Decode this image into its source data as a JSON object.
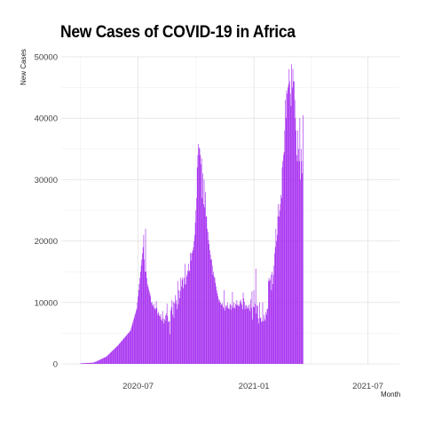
{
  "chart_data": {
    "type": "bar",
    "title": "New Cases of COVID-19 in Africa",
    "xlabel": "Month",
    "ylabel": "New Cases",
    "x_range": [
      "2020-03-01",
      "2021-08-20"
    ],
    "ylim": [
      0,
      50000
    ],
    "yticks": [
      0,
      10000,
      20000,
      30000,
      40000,
      50000
    ],
    "ytick_labels": [
      "0",
      "10000",
      "20000",
      "30000",
      "40000",
      "50000"
    ],
    "xticks": [
      "2020-07-01",
      "2021-01-01",
      "2021-07-01"
    ],
    "xtick_labels": [
      "2020-07",
      "2021-01",
      "2021-07"
    ],
    "grid": true,
    "bar_color": "#a020f0",
    "series": [
      {
        "x_start": "2020-04-01",
        "x_step_days": 1,
        "values": [
          100,
          105,
          110,
          115,
          120,
          125,
          130,
          135,
          140,
          145,
          150,
          155,
          160,
          165,
          170,
          175,
          180,
          185,
          190,
          195,
          210,
          240,
          280,
          320,
          360,
          400,
          450,
          500,
          550,
          600,
          650,
          700,
          750,
          800,
          850,
          900,
          950,
          1000,
          1050,
          1100,
          1100,
          1200,
          1300,
          1400,
          1500,
          1600,
          1700,
          1800,
          1900,
          2000,
          2100,
          2200,
          2300,
          2400,
          2500,
          2600,
          2700,
          2800,
          2900,
          3000,
          3120,
          3240,
          3360,
          3480,
          3600,
          3720,
          3840,
          3960,
          4080,
          4200,
          4320,
          4440,
          4560,
          4680,
          4800,
          4920,
          5040,
          5160,
          5280,
          5400,
          5760,
          6120,
          6480,
          6840,
          7200,
          7560,
          7920,
          8280,
          8640,
          9000,
          10000,
          11000,
          12000,
          13000,
          14000,
          15000,
          16000,
          17000,
          18000,
          19000,
          21000,
          17000,
          15000,
          22000,
          15000,
          14000,
          13000,
          12600,
          12200,
          11800,
          11400,
          11000,
          10000,
          10100,
          9600,
          9400,
          9800,
          9100,
          8900,
          9000,
          10200,
          9100,
          8000,
          8500,
          8200,
          7800,
          7700,
          8100,
          7200,
          7000,
          8600,
          7400,
          6600,
          7300,
          7000,
          7900,
          8200,
          9800,
          7800,
          6800,
          7000,
          6900,
          4800,
          8700,
          9200,
          10400,
          8000,
          10100,
          7500,
          9900,
          11200,
          9800,
          10400,
          8900,
          13500,
          9700,
          12000,
          10700,
          11900,
          14000,
          12600,
          13700,
          14100,
          12300,
          14000,
          12900,
          16300,
          13000,
          14200,
          14600,
          15200,
          16300,
          15000,
          15200,
          18100,
          16800,
          18000,
          18100,
          18500,
          19000,
          20000,
          21000,
          23000,
          25000,
          27000,
          32000,
          34000,
          35800,
          35200,
          35000,
          34000,
          32500,
          33500,
          27000,
          31000,
          26000,
          30000,
          25500,
          28000,
          24000,
          24000,
          22000,
          21500,
          20200,
          19500,
          18500,
          17800,
          17000,
          17000,
          16000,
          14500,
          15000,
          14200,
          14000,
          13200,
          12600,
          12000,
          11500,
          11000,
          10500,
          10000,
          10400,
          10000,
          9600,
          9700,
          9900,
          9300,
          9000,
          12000,
          8700,
          9500,
          9200,
          9500,
          10000,
          9100,
          9000,
          8900,
          9600,
          9800,
          8800,
          9500,
          11700,
          9100,
          10000,
          9200,
          9000,
          9800,
          9600,
          10400,
          9600,
          9400,
          9700,
          9400,
          10200,
          10500,
          9900,
          9600,
          8900,
          11600,
          10700,
          10100,
          8900,
          9500,
          9600,
          9000,
          9200,
          9500,
          9000,
          9700,
          8600,
          10500,
          9100,
          11800,
          7200,
          9300,
          12000,
          9200,
          9800,
          15500,
          8200,
          9500,
          9500,
          7400,
          6600,
          10000,
          7500,
          7500,
          6800,
          7000,
          10000,
          6900,
          8000,
          7300,
          7000,
          8400,
          8000,
          8900,
          9000,
          13500,
          14000,
          13500,
          13700,
          14500,
          12000,
          15000,
          13000,
          14500,
          16000,
          18000,
          19000,
          22000,
          20000,
          21000,
          24000,
          26000,
          24000,
          25000,
          26000,
          27500,
          27000,
          32000,
          33000,
          34000,
          34500,
          38000,
          43000,
          40000,
          44500,
          44000,
          45000,
          45500,
          48000,
          46000,
          44000,
          42000,
          48800,
          45000,
          48000,
          46000,
          46000,
          43000,
          40000,
          38000,
          34000,
          33000,
          38000,
          35000,
          33000,
          40000,
          30000,
          35000,
          33000,
          31000,
          40500
        ]
      }
    ]
  }
}
